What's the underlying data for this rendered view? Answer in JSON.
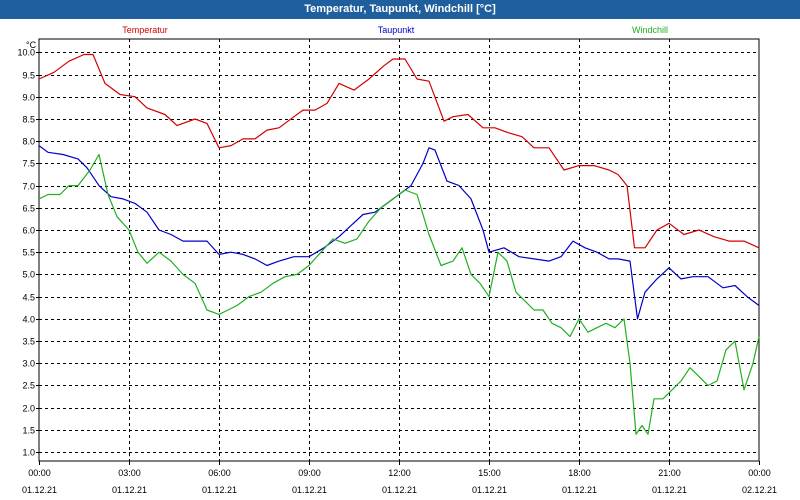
{
  "window": {
    "title": "Temperatur, Taupunkt, Windchill [°C]"
  },
  "chart_data": {
    "type": "line",
    "title": "Temperatur, Taupunkt, Windchill [°C]",
    "ylabel": "°C",
    "xlabel": "",
    "ylim": [
      0.8,
      10.3
    ],
    "xlim": [
      0,
      24
    ],
    "grid": true,
    "legend_position": "top",
    "y_ticks": [
      "1.0",
      "1.5",
      "2.0",
      "2.5",
      "3.0",
      "3.5",
      "4.0",
      "4.5",
      "5.0",
      "5.5",
      "6.0",
      "6.5",
      "7.0",
      "7.5",
      "8.0",
      "8.5",
      "9.0",
      "9.5",
      "10.0"
    ],
    "x_ticks": [
      {
        "x": 0,
        "time": "00:00",
        "date": "01.12.21"
      },
      {
        "x": 3,
        "time": "03:00",
        "date": "01.12.21"
      },
      {
        "x": 6,
        "time": "06:00",
        "date": "01.12.21"
      },
      {
        "x": 9,
        "time": "09:00",
        "date": "01.12.21"
      },
      {
        "x": 12,
        "time": "12:00",
        "date": "01.12.21"
      },
      {
        "x": 15,
        "time": "15:00",
        "date": "01.12.21"
      },
      {
        "x": 18,
        "time": "18:00",
        "date": "01.12.21"
      },
      {
        "x": 21,
        "time": "21:00",
        "date": "01.12.21"
      },
      {
        "x": 24,
        "time": "00:00",
        "date": "02.12.21"
      }
    ],
    "series": [
      {
        "name": "Temperatur",
        "color": "#d40000",
        "x": [
          0,
          0.5,
          1,
          1.5,
          1.8,
          2.2,
          2.7,
          3.2,
          3.6,
          4.2,
          4.6,
          5.2,
          5.6,
          6,
          6.4,
          6.8,
          7.2,
          7.6,
          8,
          8.5,
          8.8,
          9.2,
          9.6,
          10,
          10.5,
          11,
          11.5,
          11.8,
          12.2,
          12.6,
          13,
          13.5,
          13.8,
          14.3,
          14.8,
          15.2,
          15.6,
          16.1,
          16.5,
          17,
          17.5,
          18,
          18.5,
          19,
          19.3,
          19.6,
          19.85,
          20.2,
          20.6,
          21,
          21.5,
          22,
          22.5,
          23,
          23.5,
          24
        ],
        "values": [
          9.4,
          9.55,
          9.8,
          9.95,
          9.95,
          9.3,
          9.05,
          9.0,
          8.75,
          8.6,
          8.35,
          8.5,
          8.4,
          7.85,
          7.9,
          8.05,
          8.05,
          8.25,
          8.3,
          8.55,
          8.7,
          8.7,
          8.85,
          9.3,
          9.15,
          9.4,
          9.7,
          9.85,
          9.85,
          9.4,
          9.35,
          8.45,
          8.55,
          8.6,
          8.3,
          8.3,
          8.2,
          8.1,
          7.85,
          7.85,
          7.35,
          7.45,
          7.45,
          7.35,
          7.25,
          7.0,
          5.6,
          5.6,
          6.0,
          6.15,
          5.9,
          6.0,
          5.85,
          5.75,
          5.75,
          5.6
        ]
      },
      {
        "name": "Taupunkt",
        "color": "#0000c8",
        "x": [
          0,
          0.3,
          0.8,
          1.3,
          1.6,
          2,
          2.4,
          2.8,
          3.2,
          3.6,
          4,
          4.4,
          4.8,
          5.2,
          5.6,
          6,
          6.4,
          6.8,
          7.2,
          7.6,
          8,
          8.5,
          9,
          9.5,
          10,
          10.4,
          10.8,
          11.2,
          11.6,
          12,
          12.4,
          12.8,
          13,
          13.2,
          13.6,
          14,
          14.4,
          14.8,
          15,
          15.5,
          16,
          16.5,
          17,
          17.4,
          17.8,
          18.2,
          18.6,
          19,
          19.3,
          19.7,
          19.95,
          20.2,
          20.6,
          21,
          21.4,
          21.8,
          22.3,
          22.8,
          23.2,
          23.6,
          24
        ],
        "values": [
          7.9,
          7.75,
          7.7,
          7.6,
          7.4,
          7.0,
          6.75,
          6.7,
          6.6,
          6.4,
          6.0,
          5.9,
          5.75,
          5.75,
          5.75,
          5.45,
          5.5,
          5.45,
          5.35,
          5.2,
          5.3,
          5.4,
          5.4,
          5.6,
          5.85,
          6.1,
          6.35,
          6.4,
          6.6,
          6.8,
          7.0,
          7.5,
          7.85,
          7.8,
          7.1,
          7.0,
          6.7,
          6.0,
          5.5,
          5.6,
          5.4,
          5.35,
          5.3,
          5.4,
          5.75,
          5.6,
          5.5,
          5.35,
          5.35,
          5.3,
          4.0,
          4.6,
          4.9,
          5.15,
          4.9,
          4.95,
          4.95,
          4.7,
          4.75,
          4.5,
          4.3
        ]
      },
      {
        "name": "Windchill",
        "color": "#20b020",
        "x": [
          0,
          0.3,
          0.7,
          1,
          1.3,
          1.7,
          2,
          2.3,
          2.6,
          3,
          3.3,
          3.6,
          4,
          4.4,
          4.8,
          5.2,
          5.6,
          6,
          6.3,
          6.6,
          7,
          7.4,
          7.8,
          8.2,
          8.6,
          9,
          9.4,
          9.8,
          10.2,
          10.6,
          11,
          11.4,
          11.8,
          12.2,
          12.6,
          13,
          13.4,
          13.8,
          14.1,
          14.4,
          14.7,
          15,
          15.3,
          15.6,
          15.9,
          16.2,
          16.5,
          16.8,
          17.1,
          17.4,
          17.7,
          18,
          18.3,
          18.6,
          18.9,
          19.2,
          19.5,
          19.7,
          19.9,
          20.1,
          20.3,
          20.5,
          20.8,
          21.1,
          21.4,
          21.7,
          22,
          22.3,
          22.6,
          22.9,
          23.2,
          23.5,
          23.8,
          24
        ],
        "values": [
          6.7,
          6.8,
          6.8,
          7.0,
          7.0,
          7.35,
          7.7,
          6.8,
          6.3,
          6.0,
          5.5,
          5.25,
          5.5,
          5.3,
          5.0,
          4.8,
          4.2,
          4.1,
          4.2,
          4.3,
          4.5,
          4.6,
          4.8,
          4.95,
          5.0,
          5.2,
          5.5,
          5.8,
          5.7,
          5.8,
          6.2,
          6.5,
          6.7,
          6.9,
          6.8,
          5.9,
          5.2,
          5.3,
          5.6,
          5.0,
          4.8,
          4.5,
          5.5,
          5.3,
          4.6,
          4.4,
          4.2,
          4.2,
          3.9,
          3.8,
          3.6,
          4.0,
          3.7,
          3.8,
          3.9,
          3.8,
          4.0,
          3.0,
          1.4,
          1.6,
          1.4,
          2.2,
          2.2,
          2.4,
          2.6,
          2.9,
          2.7,
          2.5,
          2.6,
          3.3,
          3.5,
          2.4,
          3.0,
          3.6
        ]
      }
    ]
  }
}
